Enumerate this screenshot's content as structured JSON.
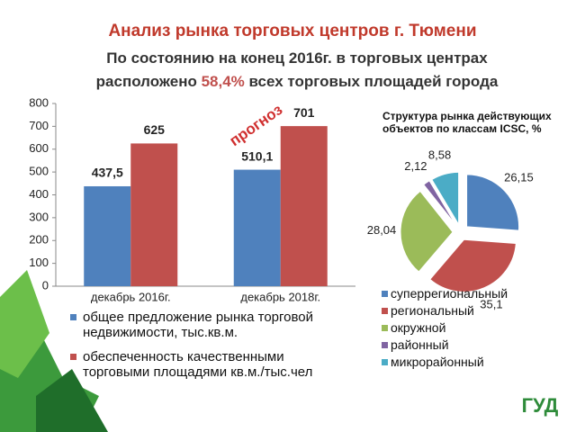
{
  "slide": {
    "title": "Анализ рынка торговых центров г. Тюмени",
    "subtitle": [
      "По состоянию на конец 2016г. в торговых центрах расположено ",
      "58,4%",
      " всех торговых площадей города"
    ],
    "annotation": "прогноз",
    "logo": "ГУД"
  },
  "chart_data": [
    {
      "type": "bar",
      "categories": [
        "декабрь 2016г.",
        "декабрь 2018г."
      ],
      "series": [
        {
          "name": "общее предложение рынка торговой недвижимости, тыс.кв.м.",
          "color": "#4f81bd",
          "values": [
            437.5,
            510.1
          ],
          "value_labels": [
            "437,5",
            "510,1"
          ]
        },
        {
          "name": "обеспеченность качественными торговыми площадями кв.м./тыс.чел",
          "color": "#c0504d",
          "values": [
            625,
            701
          ]
        }
      ],
      "ylim": [
        0,
        800
      ],
      "yticks": [
        0,
        100,
        200,
        300,
        400,
        500,
        600,
        700,
        800
      ],
      "legend": "bottom"
    },
    {
      "type": "pie",
      "title": "Структура рынка действующих объектов по классам ICSC, %",
      "categories": [
        "суперрегиональный",
        "региональный",
        "окружной",
        "районный",
        "микрорайонный"
      ],
      "values": [
        26.15,
        35.1,
        28.04,
        2.12,
        8.58
      ],
      "value_labels": [
        "26,15",
        "35,1",
        "28,04",
        "2,12",
        "8,58"
      ],
      "colors": [
        "#4f81bd",
        "#c0504d",
        "#9bbb59",
        "#8064a2",
        "#4bacc6"
      ],
      "legend": "bottom-right"
    }
  ]
}
